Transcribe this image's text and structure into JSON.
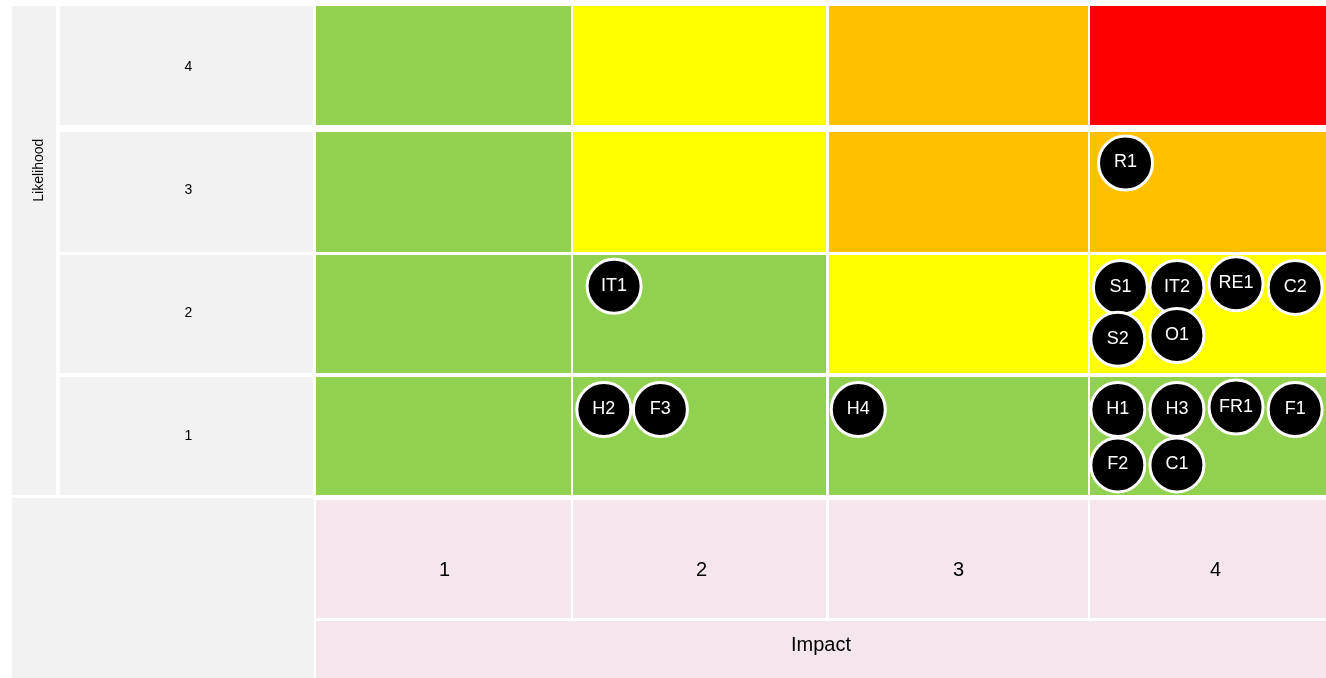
{
  "chart_data": {
    "type": "scatter",
    "xlabel": "Impact",
    "xlim": [
      0.5,
      4.43
    ],
    "ylim": [
      0.5,
      4.5
    ],
    "xticks": [
      1,
      2,
      3,
      4
    ],
    "yticks": [
      1,
      2,
      3,
      4
    ],
    "marker": "circle",
    "annotations": [
      "Likelihood"
    ],
    "series": [
      {
        "color": "#000000",
        "x": [
          3.65,
          1.66,
          3.63,
          3.85,
          4.08,
          4.31,
          3.62,
          3.85,
          1.62,
          1.84,
          2.61,
          3.62,
          3.85,
          4.08,
          4.31,
          3.62,
          3.85
        ],
        "values": [
          3.21,
          2.21,
          2.2,
          2.2,
          2.23,
          2.2,
          1.78,
          1.81,
          1.21,
          1.21,
          1.21,
          1.21,
          1.21,
          1.23,
          1.21,
          0.76,
          0.76
        ],
        "value_labels": [
          "R1",
          "IT1",
          "S1",
          "IT2",
          "RE1",
          "C2",
          "S2",
          "O1",
          "H2",
          "F3",
          "H4",
          "H1",
          "H3",
          "FR1",
          "F1",
          "F2",
          "C1"
        ]
      }
    ]
  }
}
